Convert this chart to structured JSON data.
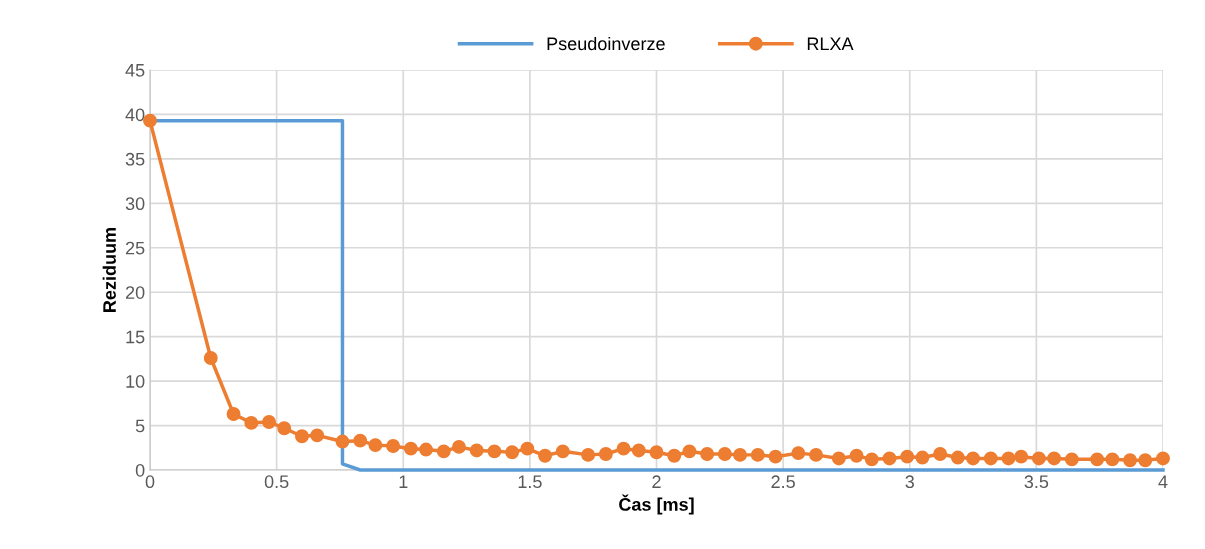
{
  "chart_data": {
    "type": "line",
    "xlabel": "Čas [ms]",
    "ylabel": "Reziduum",
    "xlim": [
      0,
      4
    ],
    "ylim": [
      0,
      45
    ],
    "xticks": [
      0,
      0.5,
      1,
      1.5,
      2,
      2.5,
      3,
      3.5,
      4
    ],
    "yticks": [
      0,
      5,
      10,
      15,
      20,
      25,
      30,
      35,
      40,
      45
    ],
    "grid": true,
    "legend": "top",
    "series": [
      {
        "name": "Pseudoinverze",
        "color": "#5b9bd5",
        "marker": "none",
        "x": [
          0,
          0.76,
          0.76,
          0.83,
          4
        ],
        "values": [
          39.3,
          39.3,
          0.7,
          0,
          0
        ]
      },
      {
        "name": "RLXA",
        "color": "#ed7d31",
        "marker": "circle",
        "x": [
          0,
          0.24,
          0.33,
          0.4,
          0.47,
          0.53,
          0.6,
          0.66,
          0.76,
          0.83,
          0.89,
          0.96,
          1.03,
          1.09,
          1.16,
          1.22,
          1.29,
          1.36,
          1.43,
          1.49,
          1.56,
          1.63,
          1.73,
          1.8,
          1.87,
          1.93,
          2.0,
          2.07,
          2.13,
          2.2,
          2.27,
          2.33,
          2.4,
          2.47,
          2.56,
          2.63,
          2.72,
          2.79,
          2.85,
          2.92,
          2.99,
          3.05,
          3.12,
          3.19,
          3.25,
          3.32,
          3.39,
          3.44,
          3.51,
          3.57,
          3.64,
          3.74,
          3.8,
          3.87,
          3.93,
          4.0
        ],
        "values": [
          39.3,
          12.6,
          6.3,
          5.3,
          5.4,
          4.7,
          3.8,
          3.9,
          3.2,
          3.3,
          2.8,
          2.7,
          2.4,
          2.3,
          2.1,
          2.6,
          2.2,
          2.1,
          2.0,
          2.4,
          1.6,
          2.1,
          1.7,
          1.8,
          2.4,
          2.2,
          2.0,
          1.6,
          2.1,
          1.8,
          1.8,
          1.7,
          1.7,
          1.5,
          1.9,
          1.7,
          1.3,
          1.6,
          1.2,
          1.3,
          1.5,
          1.4,
          1.8,
          1.4,
          1.3,
          1.3,
          1.3,
          1.5,
          1.3,
          1.3,
          1.2,
          1.2,
          1.2,
          1.1,
          1.1,
          1.3
        ]
      }
    ]
  }
}
